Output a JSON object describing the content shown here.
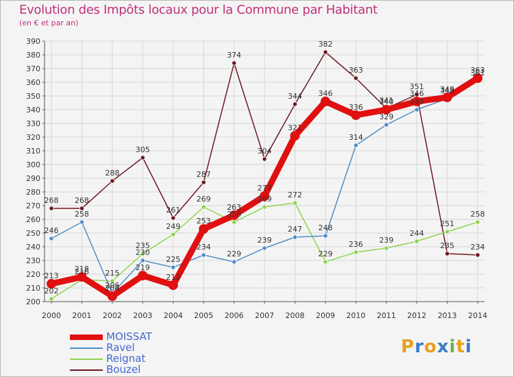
{
  "title": "Evolution des Impôts locaux pour la Commune par Habitant",
  "subtitle": "(en € et par an)",
  "logo": {
    "text": "Proxiti",
    "letters": [
      "P",
      "r",
      "o",
      "x",
      "i",
      "t",
      "i"
    ],
    "colors": [
      "#e8a020",
      "#3a7cc0",
      "#e8a020",
      "#3a7cc0",
      "#6ab04c",
      "#e8a020",
      "#3a7cc0"
    ]
  },
  "chart_data": {
    "type": "line",
    "title": "Evolution des Impôts locaux pour la Commune par Habitant",
    "subtitle": "(en € et par an)",
    "xlabel": "",
    "ylabel": "",
    "ylim": [
      200,
      390
    ],
    "ytick_step": 10,
    "yticks": [
      "200",
      "210",
      "220",
      "230",
      "240",
      "250",
      "260",
      "270",
      "280",
      "290",
      "300",
      "310",
      "320",
      "330",
      "340",
      "350",
      "360",
      "370",
      "380",
      "390"
    ],
    "categories": [
      "2000",
      "2001",
      "2002",
      "2003",
      "2004",
      "2005",
      "2006",
      "2007",
      "2008",
      "2009",
      "2010",
      "2011",
      "2012",
      "2013",
      "2014"
    ],
    "grid": true,
    "legend_position": "bottom-left",
    "series": [
      {
        "name": "Bouzel",
        "color": "#6e1820",
        "values": [
          268,
          268,
          288,
          305,
          261,
          287,
          374,
          304,
          344,
          382,
          363,
          341,
          351,
          235,
          234
        ],
        "labels": [
          "268",
          "268",
          "288",
          "305",
          "261",
          "287",
          "374",
          "304",
          "344",
          "382",
          "363",
          "341",
          "351",
          "235",
          "234"
        ]
      },
      {
        "name": "Reignat",
        "color": "#8ed44e",
        "values": [
          202,
          216,
          215,
          235,
          249,
          269,
          258,
          269,
          272,
          229,
          236,
          239,
          244,
          251,
          258
        ],
        "labels": [
          "202",
          "216",
          "215",
          "235",
          "249",
          "269",
          "258",
          "269",
          "272",
          "229",
          "236",
          "239",
          "244",
          "251",
          "258"
        ]
      },
      {
        "name": "Ravel",
        "color": "#4f8ec8",
        "values": [
          246,
          258,
          206,
          230,
          225,
          234,
          229,
          239,
          247,
          248,
          314,
          329,
          340,
          348,
          361
        ],
        "labels": [
          "246",
          "258",
          "206",
          "230",
          "225",
          "234",
          "229",
          "239",
          "247",
          "248",
          "314",
          "329",
          "340",
          "348",
          "361"
        ]
      },
      {
        "name": "MOISSAT",
        "color": "#e01010",
        "values": [
          213,
          218,
          204,
          219,
          212,
          253,
          263,
          277,
          321,
          346,
          336,
          340,
          346,
          349,
          363
        ],
        "labels": [
          "213",
          "218",
          "204",
          "219",
          "212",
          "253",
          "263",
          "277",
          "321",
          "346",
          "336",
          "340",
          "346",
          "349",
          "363"
        ]
      }
    ],
    "legend": [
      {
        "name": "MOISSAT",
        "color": "#e01010",
        "text_color": "#4466cc"
      },
      {
        "name": "Ravel",
        "color": "#4f8ec8",
        "text_color": "#4466cc"
      },
      {
        "name": "Reignat",
        "color": "#8ed44e",
        "text_color": "#4466cc"
      },
      {
        "name": "Bouzel",
        "color": "#6e1820",
        "text_color": "#4466cc"
      }
    ]
  }
}
